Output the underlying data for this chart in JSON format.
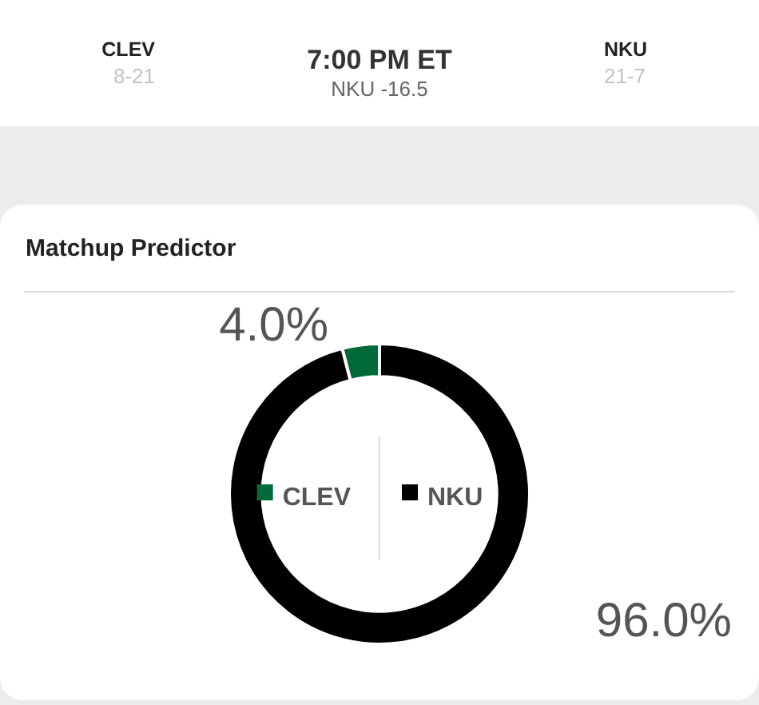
{
  "chart_data": {
    "type": "donut",
    "title": "Matchup Predictor",
    "categories": [
      "CLEV",
      "NKU"
    ],
    "values": [
      4.0,
      96.0
    ],
    "colors": [
      "#006b38",
      "#000000"
    ],
    "value_labels": [
      "4.0%",
      "96.0%"
    ],
    "legend": "center",
    "annotations": [
      "CLEV",
      "8-21",
      "7:00 PM ET",
      "NKU -16.5",
      "NKU",
      "21-7"
    ]
  }
}
